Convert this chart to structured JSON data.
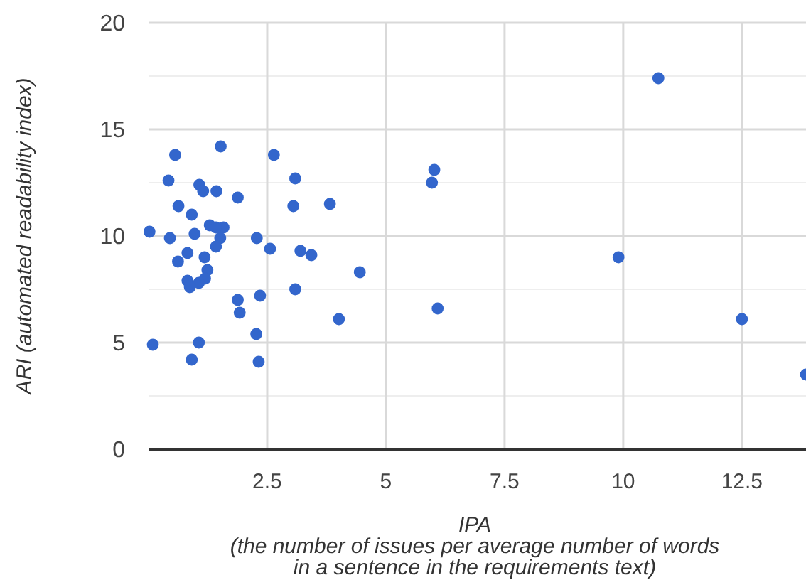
{
  "chart_data": {
    "type": "scatter",
    "xlabel": "IPA\n(the number of issues per average number of words\nin a sentence in the requirements text)",
    "ylabel": "ARI (automated readability index)",
    "xlim": [
      0,
      13.85
    ],
    "ylim": [
      0,
      20
    ],
    "xticks": [
      2.5,
      5,
      7.5,
      10,
      12.5
    ],
    "yticks": [
      0,
      {
        "value": 2.5,
        "label": null
      },
      5,
      {
        "value": 7.5,
        "label": null
      },
      10,
      {
        "value": 12.5,
        "label": null
      },
      15,
      {
        "value": 17.5,
        "label": null
      },
      20
    ],
    "grid": true,
    "marker": "circle",
    "series": [
      {
        "color": "#3366cc",
        "x": [
          10.74,
          1.52,
          0.56,
          2.64,
          6.02,
          5.97,
          0.42,
          3.09,
          1.07,
          1.15,
          1.43,
          1.88,
          0.63,
          3.05,
          3.82,
          0.91,
          1.29,
          1.58,
          1.42,
          0.02,
          0.97,
          0.45,
          1.51,
          2.28,
          1.42,
          2.56,
          3.2,
          3.43,
          9.9,
          0.82,
          1.18,
          0.62,
          1.24,
          4.45,
          0.82,
          1.19,
          1.06,
          0.87,
          3.09,
          2.35,
          1.88,
          1.92,
          6.09,
          4.01,
          12.5,
          2.27,
          0.09,
          1.06,
          0.91,
          2.32,
          13.85
        ],
        "values": [
          17.4,
          14.2,
          13.8,
          13.8,
          13.1,
          12.5,
          12.6,
          12.7,
          12.4,
          12.1,
          12.1,
          11.8,
          11.4,
          11.4,
          11.5,
          11,
          10.5,
          10.4,
          10.4,
          10.2,
          10.1,
          9.9,
          9.9,
          9.9,
          9.5,
          9.4,
          9.3,
          9.1,
          9,
          9.2,
          9,
          8.8,
          8.4,
          8.3,
          7.9,
          8,
          7.8,
          7.6,
          7.5,
          7.2,
          7,
          6.4,
          6.6,
          6.1,
          6.1,
          5.4,
          4.9,
          5,
          4.2,
          4.1,
          3.5
        ]
      }
    ]
  }
}
